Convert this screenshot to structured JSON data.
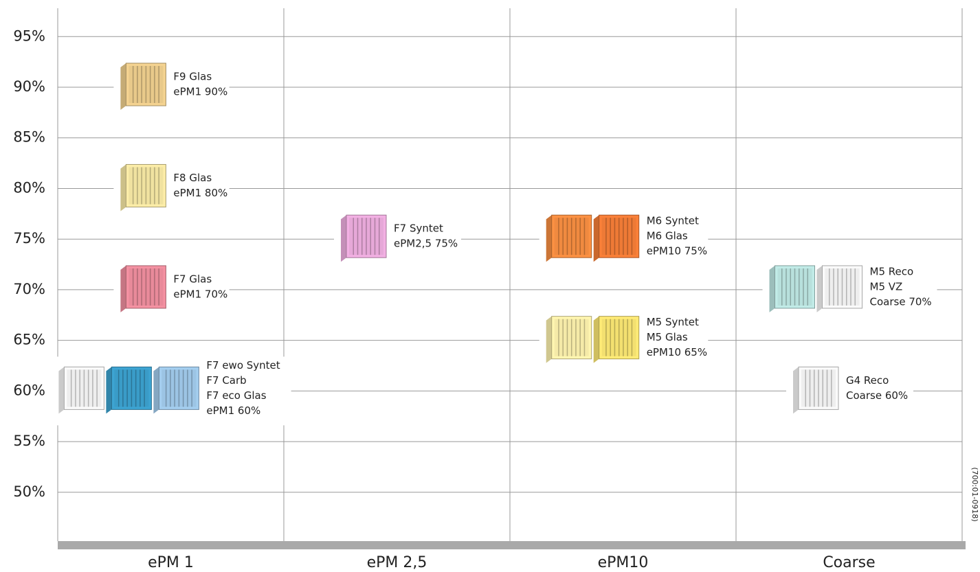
{
  "chart_data": {
    "type": "classification",
    "categories": [
      "ePM 1",
      "ePM 2,5",
      "ePM10",
      "Coarse"
    ],
    "ylim": [
      44.7,
      97.8
    ],
    "yticks": [
      {
        "value": 50,
        "label": "50%"
      },
      {
        "value": 55,
        "label": "55%"
      },
      {
        "value": 60,
        "label": "60%"
      },
      {
        "value": 65,
        "label": "65%"
      },
      {
        "value": 70,
        "label": "70%"
      },
      {
        "value": 75,
        "label": "75%"
      },
      {
        "value": 80,
        "label": "80%"
      },
      {
        "value": 85,
        "label": "85%"
      },
      {
        "value": 90,
        "label": "90%"
      },
      {
        "value": 95,
        "label": "95%"
      }
    ],
    "grid": true,
    "groups": [
      {
        "items": [
          {
            "value": 90,
            "lines": [
              "F9 Glas",
              "ePM1 90%"
            ],
            "filters": [
              "#e8c98a"
            ]
          },
          {
            "value": 80,
            "lines": [
              "F8 Glas",
              "ePM1 80%"
            ],
            "filters": [
              "#f0e2a0"
            ]
          },
          {
            "value": 70,
            "lines": [
              "F7 Glas",
              "ePM1 70%"
            ],
            "filters": [
              "#e88a9a"
            ]
          },
          {
            "value": 60,
            "lines": [
              "F7 ewo Syntet",
              "F7 Carb",
              "F7 eco Glas",
              "ePM1 60%"
            ],
            "filters": [
              "#eeeeee",
              "#3a9cc8",
              "#9cc4e4"
            ]
          }
        ]
      },
      {
        "items": [
          {
            "value": 75,
            "lines": [
              "F7 Syntet",
              "ePM2,5 75%"
            ],
            "filters": [
              "#e6a8d8"
            ]
          }
        ]
      },
      {
        "items": [
          {
            "value": 75,
            "lines": [
              "M6 Syntet",
              "M6 Glas",
              "ePM10 75%"
            ],
            "filters": [
              "#f08a40",
              "#ee7a36"
            ]
          },
          {
            "value": 65,
            "lines": [
              "M5 Syntet",
              "M5 Glas",
              "ePM10 65%"
            ],
            "filters": [
              "#f5eaa8",
              "#f3e070"
            ]
          }
        ]
      },
      {
        "items": [
          {
            "value": 70,
            "lines": [
              "M5 Reco",
              "M5 VZ",
              "Coarse 70%"
            ],
            "filters": [
              "#b8e0dc",
              "#eeeeee"
            ]
          },
          {
            "value": 60,
            "lines": [
              "G4 Reco",
              "Coarse 60%"
            ],
            "filters": [
              "#eeeeee"
            ]
          }
        ]
      }
    ],
    "footnote": "(700:01-0918)"
  }
}
